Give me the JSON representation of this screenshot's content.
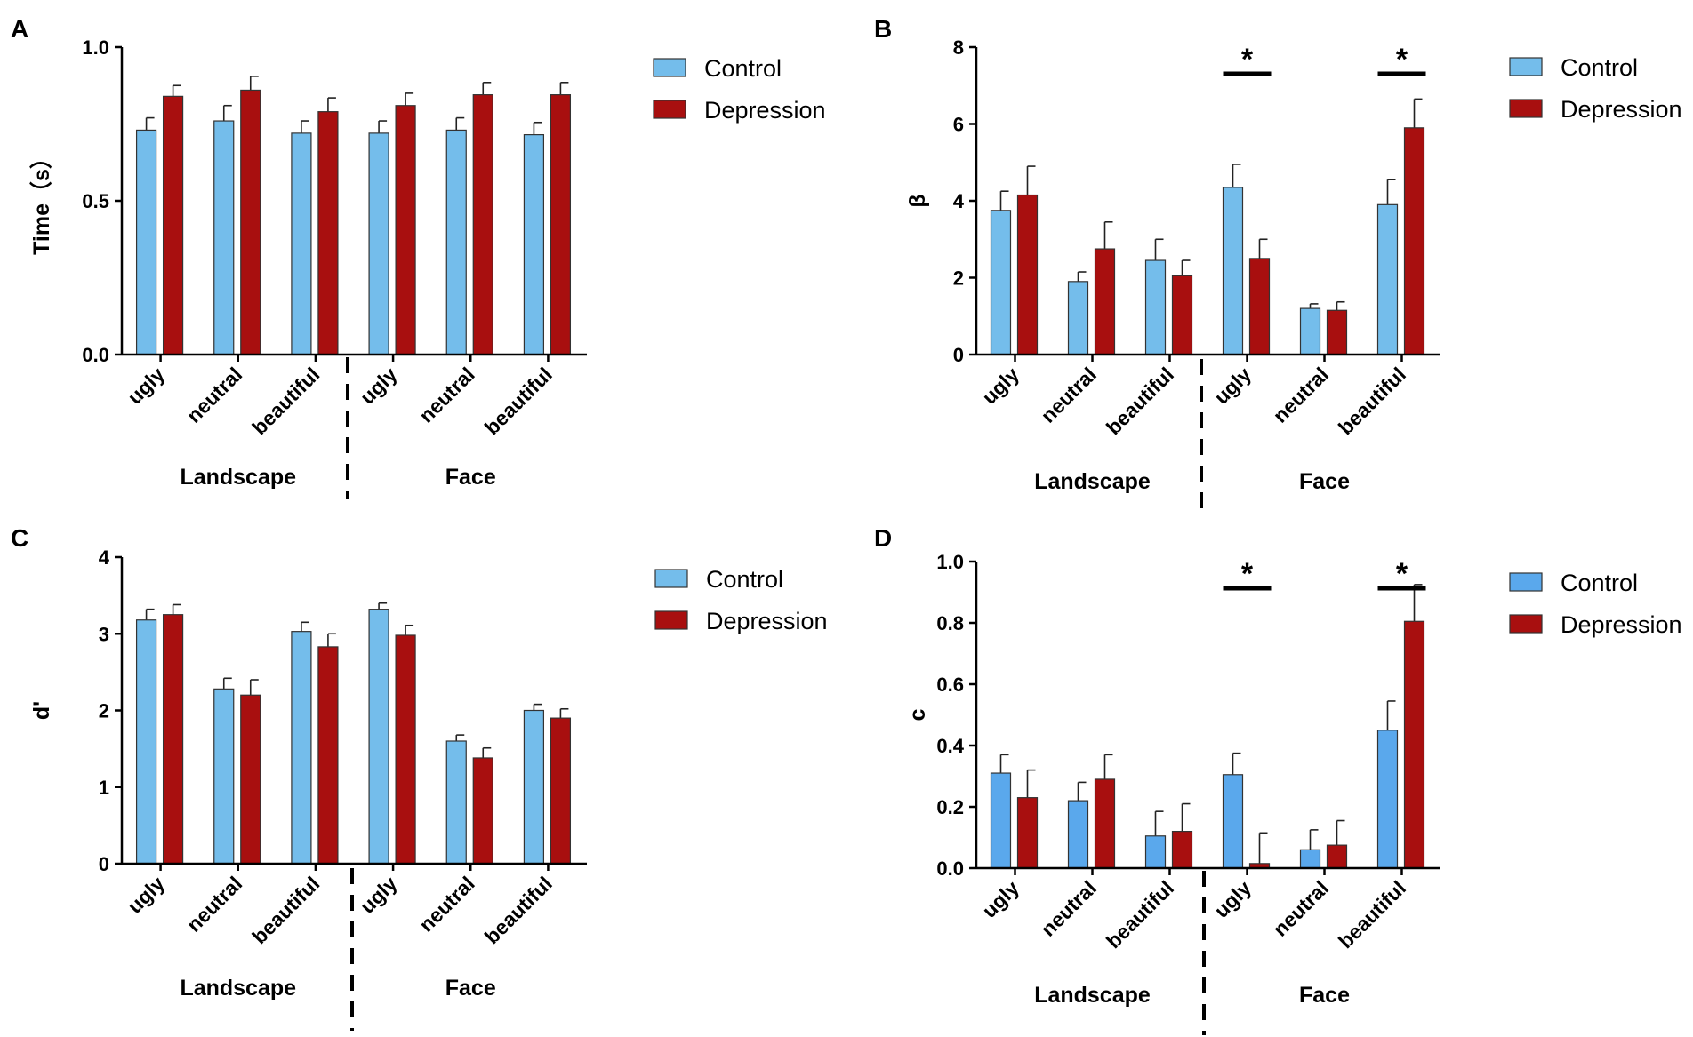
{
  "legend_labels": [
    "Control",
    "Depression"
  ],
  "groups": [
    "Landscape",
    "Face"
  ],
  "chart_data": [
    {
      "panel": "A",
      "type": "bar",
      "ylabel": "Time（s）",
      "ylim": [
        0,
        1.0
      ],
      "yticks": [
        "0.0",
        "0.5",
        "1.0"
      ],
      "categories": [
        "ugly",
        "neutral",
        "beautiful",
        "ugly",
        "neutral",
        "beautiful"
      ],
      "groups": [
        "Landscape",
        "Face"
      ],
      "series": [
        {
          "name": "Control",
          "color": "#74BDEB",
          "values": [
            0.73,
            0.76,
            0.72,
            0.72,
            0.73,
            0.715
          ],
          "errors": [
            0.04,
            0.05,
            0.04,
            0.04,
            0.04,
            0.04
          ]
        },
        {
          "name": "Depression",
          "color": "#A80F0F",
          "values": [
            0.84,
            0.86,
            0.79,
            0.81,
            0.845,
            0.845
          ],
          "errors": [
            0.035,
            0.045,
            0.045,
            0.04,
            0.04,
            0.04
          ]
        }
      ],
      "significance": []
    },
    {
      "panel": "B",
      "type": "bar",
      "ylabel": "β",
      "ylim": [
        0,
        8
      ],
      "yticks": [
        "0",
        "2",
        "4",
        "6",
        "8"
      ],
      "categories": [
        "ugly",
        "neutral",
        "beautiful",
        "ugly",
        "neutral",
        "beautiful"
      ],
      "groups": [
        "Landscape",
        "Face"
      ],
      "series": [
        {
          "name": "Control",
          "color": "#74BDEB",
          "values": [
            3.75,
            1.9,
            2.45,
            4.35,
            1.2,
            3.9
          ],
          "errors": [
            0.5,
            0.25,
            0.55,
            0.6,
            0.12,
            0.65
          ]
        },
        {
          "name": "Depression",
          "color": "#A80F0F",
          "values": [
            4.15,
            2.75,
            2.05,
            2.5,
            1.15,
            5.9
          ],
          "errors": [
            0.75,
            0.7,
            0.4,
            0.5,
            0.22,
            0.75
          ]
        }
      ],
      "significance": [
        {
          "category_index": 3,
          "label": "*"
        },
        {
          "category_index": 5,
          "label": "*"
        }
      ]
    },
    {
      "panel": "C",
      "type": "bar",
      "ylabel": "d'",
      "ylim": [
        0,
        4
      ],
      "yticks": [
        "0",
        "1",
        "2",
        "3",
        "4"
      ],
      "categories": [
        "ugly",
        "neutral",
        "beautiful",
        "ugly",
        "neutral",
        "beautiful"
      ],
      "groups": [
        "Landscape",
        "Face"
      ],
      "series": [
        {
          "name": "Control",
          "color": "#74BDEB",
          "values": [
            3.18,
            2.28,
            3.03,
            3.32,
            1.6,
            2.0
          ],
          "errors": [
            0.14,
            0.14,
            0.12,
            0.08,
            0.08,
            0.08
          ]
        },
        {
          "name": "Depression",
          "color": "#A80F0F",
          "values": [
            3.25,
            2.2,
            2.83,
            2.98,
            1.38,
            1.9
          ],
          "errors": [
            0.13,
            0.2,
            0.17,
            0.13,
            0.13,
            0.12
          ]
        }
      ],
      "significance": []
    },
    {
      "panel": "D",
      "type": "bar",
      "ylabel": "c",
      "ylim": [
        0,
        1.0
      ],
      "yticks": [
        "0.0",
        "0.2",
        "0.4",
        "0.6",
        "0.8",
        "1.0"
      ],
      "categories": [
        "ugly",
        "neutral",
        "beautiful",
        "ugly",
        "neutral",
        "beautiful"
      ],
      "groups": [
        "Landscape",
        "Face"
      ],
      "series": [
        {
          "name": "Control",
          "color": "#5AA8EC",
          "values": [
            0.31,
            0.22,
            0.105,
            0.305,
            0.06,
            0.45
          ],
          "errors": [
            0.06,
            0.06,
            0.08,
            0.07,
            0.065,
            0.095
          ]
        },
        {
          "name": "Depression",
          "color": "#A80F0F",
          "values": [
            0.23,
            0.29,
            0.12,
            0.015,
            0.075,
            0.805
          ],
          "errors": [
            0.09,
            0.08,
            0.09,
            0.1,
            0.08,
            0.12
          ]
        }
      ],
      "significance": [
        {
          "category_index": 3,
          "label": "*"
        },
        {
          "category_index": 5,
          "label": "*"
        }
      ]
    }
  ]
}
